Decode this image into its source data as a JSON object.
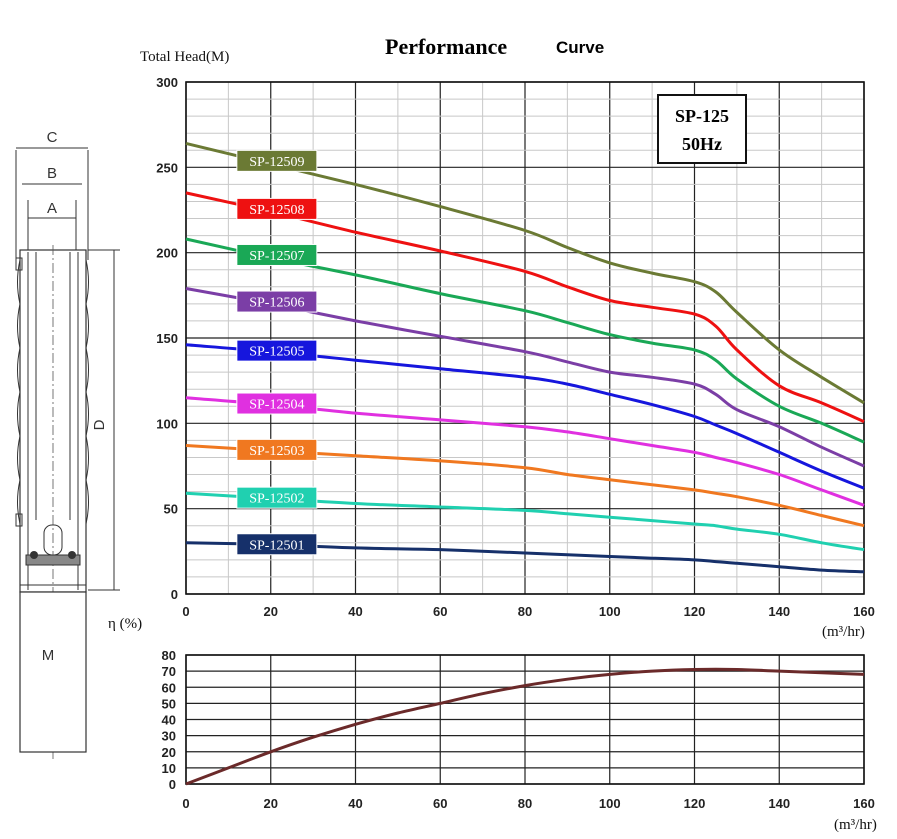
{
  "chart_data": [
    {
      "type": "line",
      "title": "Performance",
      "subtitle": "Curve",
      "ylabel": "Total Head(M)",
      "xlabel": "(m³/hr)",
      "xlim": [
        0,
        160
      ],
      "ylim": [
        0,
        300
      ],
      "xticks": [
        "0",
        "20",
        "40",
        "60",
        "80",
        "100",
        "120",
        "140",
        "160"
      ],
      "yticks": [
        "0",
        "50",
        "100",
        "150",
        "200",
        "250",
        "300"
      ],
      "grid": true,
      "model_box": [
        "SP-125",
        "50Hz"
      ],
      "series": [
        {
          "name": "SP-12509",
          "color": "#6b7a34",
          "label_color": "#6b7a34",
          "x": [
            0,
            20,
            40,
            60,
            80,
            90,
            100,
            110,
            120,
            125,
            130,
            140,
            150,
            160
          ],
          "y": [
            264,
            252,
            240,
            227,
            213,
            203,
            194,
            188,
            183,
            177,
            165,
            143,
            127,
            112
          ]
        },
        {
          "name": "SP-12508",
          "color": "#ee1111",
          "label_color": "#ee1111",
          "x": [
            0,
            20,
            40,
            60,
            80,
            90,
            100,
            110,
            120,
            125,
            130,
            140,
            150,
            160
          ],
          "y": [
            235,
            224,
            212,
            201,
            189,
            180,
            172,
            168,
            164,
            157,
            143,
            122,
            112,
            101
          ]
        },
        {
          "name": "SP-12507",
          "color": "#1aa856",
          "label_color": "#1aa856",
          "x": [
            0,
            20,
            40,
            60,
            80,
            90,
            100,
            110,
            120,
            125,
            130,
            140,
            150,
            160
          ],
          "y": [
            208,
            197,
            187,
            176,
            166,
            159,
            152,
            147,
            143,
            137,
            126,
            110,
            100,
            89
          ]
        },
        {
          "name": "SP-12506",
          "color": "#7b3ea6",
          "label_color": "#7b3ea6",
          "x": [
            0,
            20,
            40,
            60,
            80,
            90,
            100,
            110,
            120,
            125,
            130,
            140,
            150,
            160
          ],
          "y": [
            179,
            170,
            160,
            151,
            142,
            136,
            130,
            127,
            123,
            117,
            108,
            98,
            86,
            75
          ]
        },
        {
          "name": "SP-12505",
          "color": "#1616dd",
          "label_color": "#1616dd",
          "x": [
            0,
            20,
            40,
            60,
            80,
            90,
            100,
            110,
            120,
            125,
            130,
            140,
            150,
            160
          ],
          "y": [
            146,
            142,
            137,
            132,
            127,
            123,
            117,
            111,
            104,
            99,
            94,
            83,
            72,
            62
          ]
        },
        {
          "name": "SP-12504",
          "color": "#e030e0",
          "label_color": "#e030e0",
          "x": [
            0,
            20,
            40,
            60,
            80,
            90,
            100,
            110,
            120,
            125,
            130,
            140,
            150,
            160
          ],
          "y": [
            115,
            111,
            106,
            102,
            98,
            95,
            91,
            87,
            83,
            80,
            77,
            70,
            61,
            52
          ]
        },
        {
          "name": "SP-12503",
          "color": "#f07820",
          "label_color": "#f07820",
          "x": [
            0,
            20,
            40,
            60,
            80,
            90,
            100,
            110,
            120,
            125,
            130,
            140,
            150,
            160
          ],
          "y": [
            87,
            84,
            81,
            78,
            74,
            70,
            67,
            64,
            61,
            59,
            57,
            52,
            46,
            40
          ]
        },
        {
          "name": "SP-12502",
          "color": "#20d0b0",
          "label_color": "#20d0b0",
          "x": [
            0,
            20,
            40,
            60,
            80,
            90,
            100,
            110,
            120,
            125,
            130,
            140,
            150,
            160
          ],
          "y": [
            59,
            56,
            53,
            51,
            49,
            47,
            45,
            43,
            41,
            40,
            38,
            35,
            30,
            26
          ]
        },
        {
          "name": "SP-12501",
          "color": "#16306a",
          "label_color": "#16306a",
          "x": [
            0,
            20,
            40,
            60,
            80,
            90,
            100,
            110,
            120,
            125,
            130,
            140,
            150,
            160
          ],
          "y": [
            30,
            29,
            27,
            26,
            24,
            23,
            22,
            21,
            20,
            19,
            18,
            16,
            14,
            13
          ]
        }
      ]
    },
    {
      "type": "line",
      "ylabel": "η (%)",
      "xlabel": "(m³/hr)",
      "xlim": [
        0,
        160
      ],
      "ylim": [
        0,
        80
      ],
      "xticks": [
        "0",
        "20",
        "40",
        "60",
        "80",
        "100",
        "120",
        "140",
        "160"
      ],
      "yticks": [
        "0",
        "10",
        "20",
        "30",
        "40",
        "50",
        "60",
        "70",
        "80"
      ],
      "grid": true,
      "series": [
        {
          "color": "#6b2a2a",
          "x": [
            0,
            10,
            20,
            30,
            40,
            50,
            60,
            70,
            80,
            90,
            100,
            110,
            120,
            130,
            140,
            150,
            160
          ],
          "y": [
            0,
            10,
            20,
            29,
            37,
            44,
            50,
            56,
            61,
            65,
            68,
            70,
            71,
            71,
            70,
            69,
            68
          ]
        }
      ]
    }
  ],
  "drawing": {
    "dims": [
      "C",
      "B",
      "A",
      "D",
      "M"
    ]
  }
}
